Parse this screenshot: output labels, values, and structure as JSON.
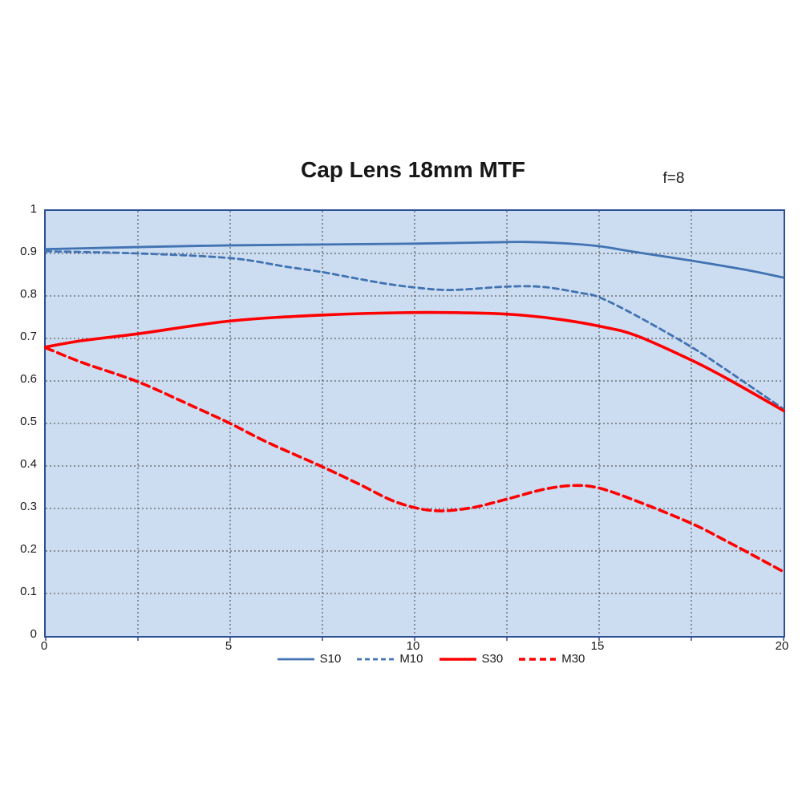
{
  "title": "Cap Lens 18mm MTF",
  "annotation": "f=8",
  "colors": {
    "plot_background": "#cdddf1",
    "plot_border": "#2d4f93",
    "gridline": "#404040",
    "blue_series": "#4173b3",
    "red_series": "#ff0000",
    "text": "#1a1a1a"
  },
  "chart_data": {
    "type": "line",
    "title": "Cap Lens 18mm MTF",
    "annotation": "f=8",
    "xlabel": "",
    "ylabel": "",
    "xlim": [
      0,
      20
    ],
    "ylim": [
      0,
      1
    ],
    "grid": true,
    "legend_position": "bottom",
    "x_ticks": [
      {
        "v": 0,
        "label": "0"
      },
      {
        "v": 2.5,
        "label": ""
      },
      {
        "v": 5,
        "label": "5"
      },
      {
        "v": 7.5,
        "label": ""
      },
      {
        "v": 10,
        "label": "10"
      },
      {
        "v": 12.5,
        "label": ""
      },
      {
        "v": 15,
        "label": "15"
      },
      {
        "v": 17.5,
        "label": ""
      },
      {
        "v": 20,
        "label": "20"
      }
    ],
    "y_ticks": [
      {
        "v": 0,
        "label": "0"
      },
      {
        "v": 0.1,
        "label": "0.1"
      },
      {
        "v": 0.2,
        "label": "0.2"
      },
      {
        "v": 0.3,
        "label": "0.3"
      },
      {
        "v": 0.4,
        "label": "0.4"
      },
      {
        "v": 0.5,
        "label": "0.5"
      },
      {
        "v": 0.6,
        "label": "0.6"
      },
      {
        "v": 0.7,
        "label": "0.7"
      },
      {
        "v": 0.8,
        "label": "0.8"
      },
      {
        "v": 0.9,
        "label": "0.9"
      },
      {
        "v": 1,
        "label": "1"
      }
    ],
    "series": [
      {
        "name": "S10",
        "color": "#4173b3",
        "dash": "solid",
        "width": 2.8,
        "points": [
          [
            0,
            0.91
          ],
          [
            1,
            0.912
          ],
          [
            2.5,
            0.915
          ],
          [
            5,
            0.919
          ],
          [
            7.5,
            0.921
          ],
          [
            10,
            0.923
          ],
          [
            12,
            0.926
          ],
          [
            13,
            0.927
          ],
          [
            14,
            0.924
          ],
          [
            15,
            0.917
          ],
          [
            16,
            0.903
          ],
          [
            17.5,
            0.883
          ],
          [
            19,
            0.861
          ],
          [
            20,
            0.843
          ]
        ]
      },
      {
        "name": "M10",
        "color": "#4173b3",
        "dash": "dashed",
        "width": 2.8,
        "points": [
          [
            0,
            0.905
          ],
          [
            2.5,
            0.9
          ],
          [
            5,
            0.889
          ],
          [
            6.5,
            0.869
          ],
          [
            7.5,
            0.856
          ],
          [
            9,
            0.832
          ],
          [
            10,
            0.82
          ],
          [
            11,
            0.814
          ],
          [
            12.5,
            0.822
          ],
          [
            13.5,
            0.821
          ],
          [
            14.5,
            0.807
          ],
          [
            15,
            0.797
          ],
          [
            16,
            0.754
          ],
          [
            17.5,
            0.68
          ],
          [
            18.5,
            0.623
          ],
          [
            20,
            0.534
          ]
        ]
      },
      {
        "name": "S30",
        "color": "#ff0000",
        "dash": "solid",
        "width": 3.6,
        "points": [
          [
            0,
            0.68
          ],
          [
            1,
            0.695
          ],
          [
            2.5,
            0.711
          ],
          [
            5,
            0.741
          ],
          [
            7.5,
            0.755
          ],
          [
            10,
            0.761
          ],
          [
            12,
            0.759
          ],
          [
            13,
            0.754
          ],
          [
            14,
            0.744
          ],
          [
            15,
            0.729
          ],
          [
            16,
            0.707
          ],
          [
            17.5,
            0.649
          ],
          [
            18.5,
            0.604
          ],
          [
            20,
            0.53
          ]
        ]
      },
      {
        "name": "M30",
        "color": "#ff0000",
        "dash": "dashed",
        "width": 3.6,
        "points": [
          [
            0,
            0.678
          ],
          [
            1,
            0.643
          ],
          [
            2.5,
            0.598
          ],
          [
            4,
            0.54
          ],
          [
            5,
            0.5
          ],
          [
            6,
            0.456
          ],
          [
            7.5,
            0.398
          ],
          [
            8.5,
            0.357
          ],
          [
            9.5,
            0.315
          ],
          [
            10.5,
            0.295
          ],
          [
            11.5,
            0.301
          ],
          [
            12.5,
            0.322
          ],
          [
            13.5,
            0.345
          ],
          [
            14.3,
            0.354
          ],
          [
            15,
            0.348
          ],
          [
            16,
            0.318
          ],
          [
            17.5,
            0.265
          ],
          [
            18.5,
            0.221
          ],
          [
            19.3,
            0.184
          ],
          [
            20,
            0.151
          ]
        ]
      }
    ],
    "legend": [
      "S10",
      "M10",
      "S30",
      "M30"
    ]
  }
}
